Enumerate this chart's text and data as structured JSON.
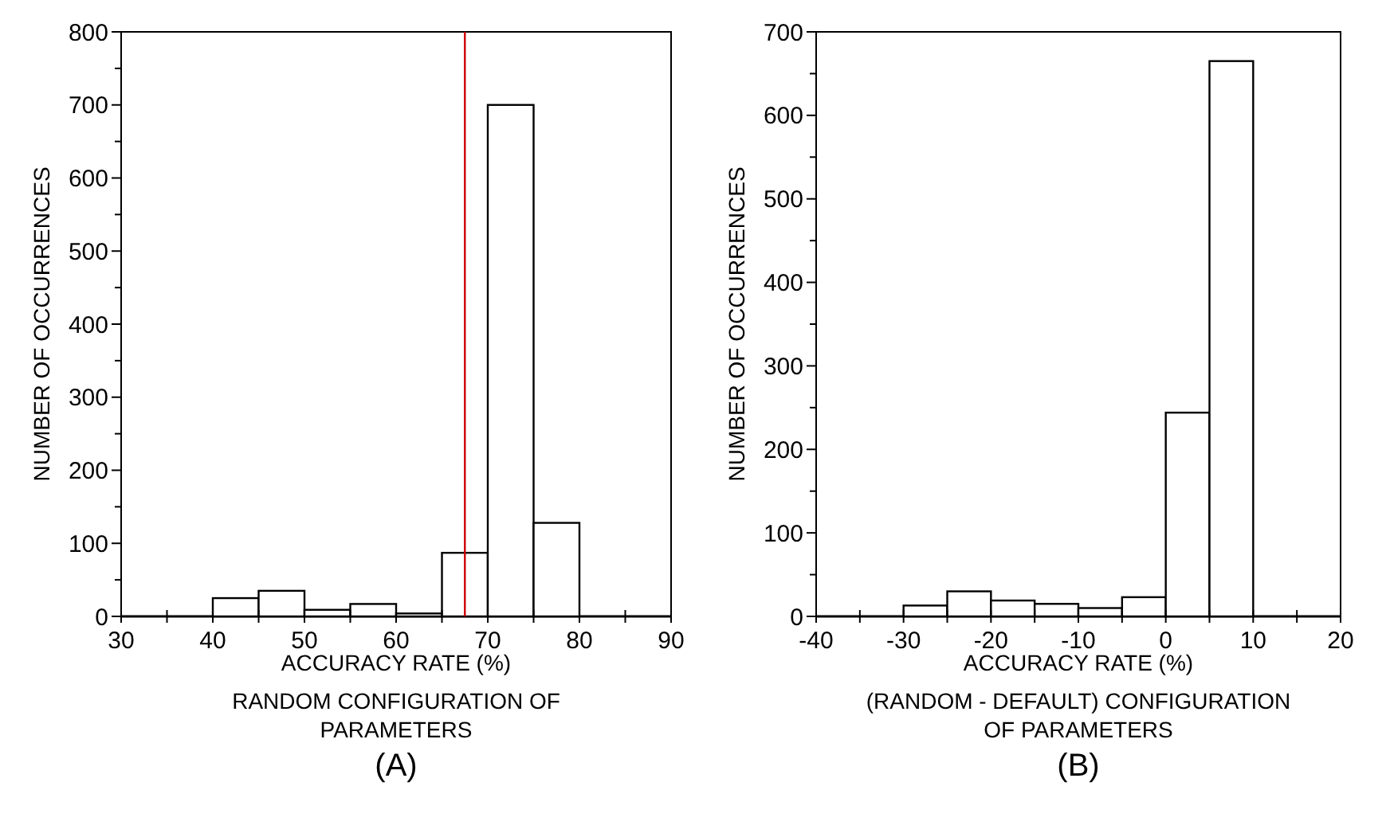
{
  "chart_data": [
    {
      "type": "histogram",
      "bins": [
        30,
        35,
        40,
        45,
        50,
        55,
        60,
        65,
        70,
        75,
        80,
        85,
        90
      ],
      "values": [
        0,
        0,
        25,
        35,
        9,
        17,
        4,
        87,
        700,
        128,
        0,
        0
      ],
      "color": "#ffffff",
      "xlim": [
        30,
        90
      ],
      "ylim": [
        0,
        800
      ],
      "xticks": [
        30,
        {
          "value": 35,
          "label": null
        },
        40,
        {
          "value": 45,
          "label": null
        },
        50,
        {
          "value": 55,
          "label": null
        },
        60,
        {
          "value": 65,
          "label": null
        },
        70,
        {
          "value": 75,
          "label": null
        },
        80,
        {
          "value": 85,
          "label": null
        },
        90
      ],
      "yticks": [
        0,
        {
          "value": 50,
          "label": null
        },
        100,
        {
          "value": 150,
          "label": null
        },
        200,
        {
          "value": 250,
          "label": null
        },
        300,
        {
          "value": 350,
          "label": null
        },
        400,
        {
          "value": 450,
          "label": null
        },
        500,
        {
          "value": 550,
          "label": null
        },
        600,
        {
          "value": 650,
          "label": null
        },
        700,
        {
          "value": 750,
          "label": null
        },
        800
      ],
      "xlabel": "ACCURACY RATE (%)",
      "ylabel": "NUMBER OF OCCURRENCES",
      "annotations": [
        "RANDOM CONFIGURATION OF\nPARAMETERS",
        "(A)"
      ],
      "ref_lines": [
        {
          "axis": "x",
          "value": 67.5,
          "color": "#cc0000"
        }
      ]
    },
    {
      "type": "histogram",
      "bins": [
        -40,
        -35,
        -30,
        -25,
        -20,
        -15,
        -10,
        -5,
        0,
        5,
        10,
        15,
        20
      ],
      "values": [
        0,
        0,
        13,
        30,
        19,
        15,
        10,
        23,
        244,
        665,
        0,
        0
      ],
      "color": "#ffffff",
      "xlim": [
        -40,
        20
      ],
      "ylim": [
        0,
        700
      ],
      "xticks": [
        -40,
        {
          "value": -35,
          "label": null
        },
        -30,
        {
          "value": -25,
          "label": null
        },
        -20,
        {
          "value": -15,
          "label": null
        },
        -10,
        {
          "value": -5,
          "label": null
        },
        0,
        {
          "value": 5,
          "label": null
        },
        10,
        {
          "value": 15,
          "label": null
        },
        20
      ],
      "yticks": [
        0,
        {
          "value": 50,
          "label": null
        },
        100,
        {
          "value": 150,
          "label": null
        },
        200,
        {
          "value": 250,
          "label": null
        },
        300,
        {
          "value": 350,
          "label": null
        },
        400,
        {
          "value": 450,
          "label": null
        },
        500,
        {
          "value": 550,
          "label": null
        },
        600,
        {
          "value": 650,
          "label": null
        },
        700
      ],
      "xlabel": "ACCURACY RATE (%)",
      "ylabel": "NUMBER OF OCCURRENCES",
      "annotations": [
        "(RANDOM - DEFAULT) CONFIGURATION\nOF PARAMETERS",
        "(B)"
      ]
    }
  ]
}
